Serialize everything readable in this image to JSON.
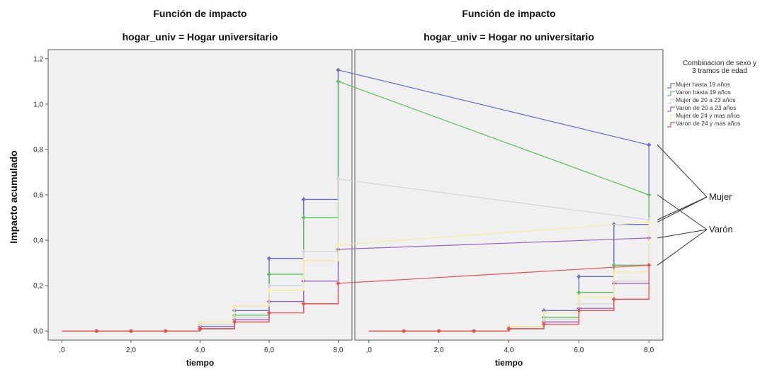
{
  "chart_data": {
    "type": "line",
    "ylabel": "Impacto acumulado",
    "legend": {
      "title_lines": [
        "Combinacion de sexo y",
        "3 tramos de edad"
      ],
      "placement": "right"
    },
    "series_styles": [
      {
        "name": "Mujer hasta 19 años",
        "color": "#6b6bc9"
      },
      {
        "name": "Varon hasta 19 años",
        "color": "#5cc05c"
      },
      {
        "name": "Mujer de 20 a 23 años",
        "color": "#d4d4d4"
      },
      {
        "name": "Varon de 20 a 23 años",
        "color": "#9a62c0"
      },
      {
        "name": "Mujer de 24 y mas años",
        "color": "#f6eaa0"
      },
      {
        "name": "Varon de 24 y mas años",
        "color": "#e85050"
      }
    ],
    "x_ticks": [
      0,
      2,
      4,
      6,
      8
    ],
    "x_tick_labels": [
      ",0",
      "2,0",
      "4,0",
      "6,0",
      "8,0"
    ],
    "y_ticks": [
      0,
      0.2,
      0.4,
      0.6,
      0.8,
      1.0,
      1.2
    ],
    "y_tick_labels": [
      "0,0",
      "0,2",
      "0,4",
      "0,6",
      "0,8",
      "1,0",
      "1,2"
    ],
    "xlim": [
      -0.4,
      8.4
    ],
    "ylim": [
      -0.04,
      1.24
    ],
    "grid": false,
    "panels": [
      {
        "title": "Función de impacto",
        "subtitle": "hogar_univ = Hogar universitario",
        "xlabel": "tiempo",
        "series": [
          {
            "name": "Mujer hasta 19 años",
            "x": [
              0,
              4,
              5,
              6,
              7,
              8
            ],
            "y": [
              0,
              0.02,
              0.09,
              0.32,
              0.58,
              1.15
            ]
          },
          {
            "name": "Varon hasta 19 años",
            "x": [
              0,
              4,
              5,
              6,
              7,
              8
            ],
            "y": [
              0,
              0.01,
              0.07,
              0.25,
              0.5,
              1.1
            ]
          },
          {
            "name": "Mujer de 20 a 23 años",
            "x": [
              0,
              4,
              5,
              6,
              7,
              8
            ],
            "y": [
              0,
              0.03,
              0.06,
              0.2,
              0.35,
              0.67
            ]
          },
          {
            "name": "Varon de 20 a 23 años",
            "x": [
              0,
              4,
              5,
              6,
              7,
              8
            ],
            "y": [
              0,
              0.01,
              0.05,
              0.13,
              0.22,
              0.36
            ]
          },
          {
            "name": "Mujer de 24 y mas años",
            "x": [
              0,
              4,
              5,
              6,
              7,
              8
            ],
            "y": [
              0,
              0.04,
              0.11,
              0.18,
              0.31,
              0.38
            ]
          },
          {
            "name": "Varon de 24 y mas años",
            "x": [
              0,
              4,
              5,
              6,
              7,
              8
            ],
            "y": [
              0,
              0.01,
              0.04,
              0.08,
              0.12,
              0.21
            ]
          }
        ],
        "censor_marks": [
          {
            "name": "Varon de 24 y mas años",
            "x": [
              1,
              2,
              3,
              4
            ],
            "y": [
              0,
              0,
              0,
              0.01
            ]
          }
        ]
      },
      {
        "title": "Función de impacto",
        "subtitle": "hogar_univ = Hogar no universitario",
        "xlabel": "tiempo",
        "series": [
          {
            "name": "Mujer hasta 19 años",
            "x": [
              0,
              4,
              5,
              6,
              7,
              8
            ],
            "y": [
              0,
              0.02,
              0.09,
              0.24,
              0.47,
              0.82
            ]
          },
          {
            "name": "Varon hasta 19 años",
            "x": [
              0,
              4,
              5,
              6,
              7,
              8
            ],
            "y": [
              0,
              0.02,
              0.06,
              0.17,
              0.29,
              0.6
            ]
          },
          {
            "name": "Mujer de 20 a 23 años",
            "x": [
              0,
              4,
              5,
              6,
              7,
              8
            ],
            "y": [
              0,
              0.01,
              0.05,
              0.12,
              0.22,
              0.49
            ]
          },
          {
            "name": "Varon de 20 a 23 años",
            "x": [
              0,
              4,
              5,
              6,
              7,
              8
            ],
            "y": [
              0,
              0.01,
              0.04,
              0.1,
              0.21,
              0.41
            ]
          },
          {
            "name": "Mujer de 24 y mas años",
            "x": [
              0,
              4,
              5,
              6,
              7,
              8
            ],
            "y": [
              0,
              0.02,
              0.08,
              0.15,
              0.26,
              0.48
            ]
          },
          {
            "name": "Varon de 24 y mas años",
            "x": [
              0,
              4,
              5,
              6,
              7,
              8
            ],
            "y": [
              0,
              0.01,
              0.03,
              0.09,
              0.14,
              0.29
            ]
          }
        ],
        "censor_marks": [
          {
            "name": "Varon de 24 y mas años",
            "x": [
              1,
              2,
              3,
              4
            ],
            "y": [
              0,
              0,
              0,
              0.01
            ]
          }
        ]
      }
    ],
    "annotations": [
      {
        "text": "Mujer",
        "targets": [
          {
            "panel": 1,
            "x": 8,
            "y": 0.82
          },
          {
            "panel": 1,
            "x": 8,
            "y": 0.49
          },
          {
            "panel": 1,
            "x": 8,
            "y": 0.48
          }
        ]
      },
      {
        "text": "Varón",
        "targets": [
          {
            "panel": 1,
            "x": 8,
            "y": 0.6
          },
          {
            "panel": 1,
            "x": 8,
            "y": 0.41
          },
          {
            "panel": 1,
            "x": 8,
            "y": 0.29
          }
        ]
      }
    ]
  }
}
